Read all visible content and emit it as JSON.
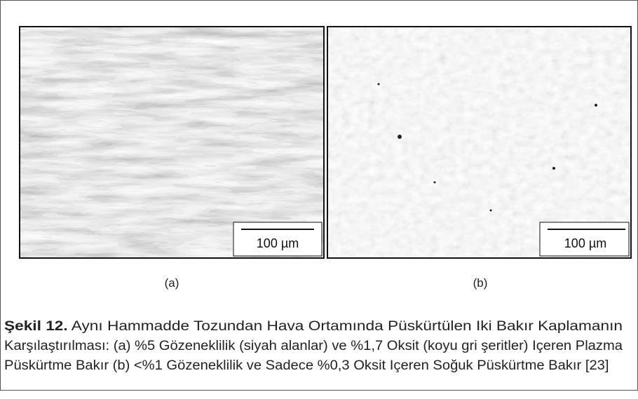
{
  "figure": {
    "scale_bar_a": "100 µm",
    "scale_bar_b": "100 µm",
    "panel_a": "(a)",
    "panel_b": "(b)",
    "caption": {
      "label": "Şekil 12.",
      "lines": [
        " Aynı Hammadde Tozundan Hava Ortamında Püskürtülen Iki Bakır Kaplamanın",
        "Karşılaştırılması: (a) %5 Gözeneklilik (siyah alanlar) ve %1,7 Oksit (koyu gri şeritler) Içeren Plazma",
        "Püskürtme Bakır (b) <%1 Gözeneklilik ve Sadece %0,3 Oksit Içeren Soğuk Püskürtme Bakır [23]"
      ]
    }
  }
}
